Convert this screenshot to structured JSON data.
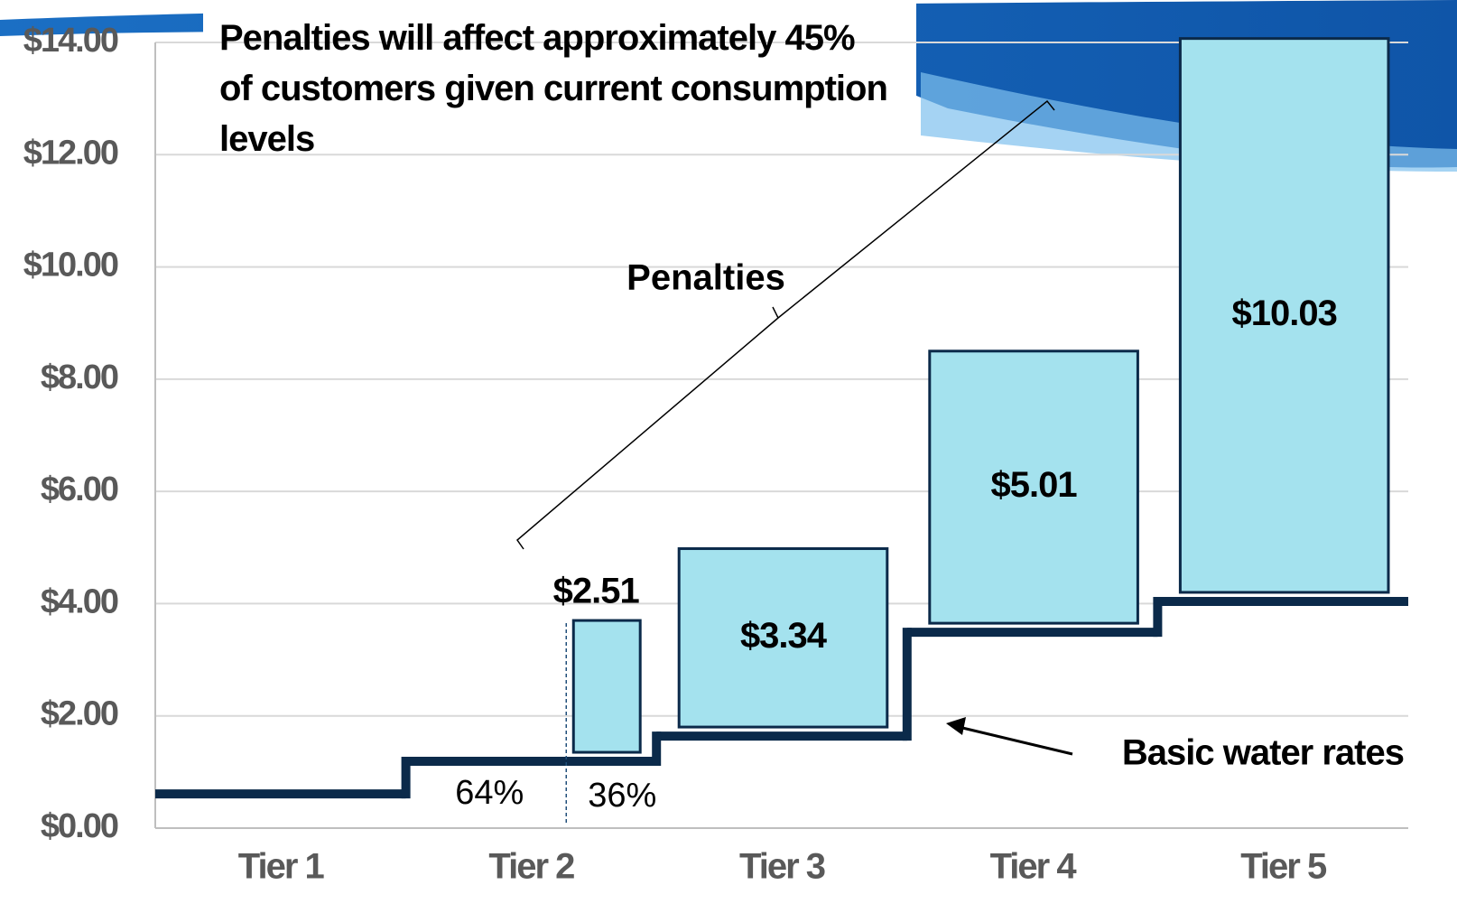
{
  "chart_data": {
    "type": "stepped-stack",
    "title": "Penalties will affect approximately 45% of customers given current consumption levels",
    "categories": [
      "Tier 1",
      "Tier 2",
      "Tier 3",
      "Tier 4",
      "Tier 5"
    ],
    "series": [
      {
        "name": "Basic water rates",
        "color": "#0b2a4a",
        "values": [
          0.61,
          1.19,
          1.64,
          3.49,
          4.04
        ]
      },
      {
        "name": "Penalties",
        "color": "#a4e2ee",
        "values": [
          null,
          2.51,
          3.34,
          5.01,
          10.03
        ],
        "value_labels": [
          null,
          "$2.51",
          "$3.34",
          "$5.01",
          "$10.03"
        ]
      }
    ],
    "tier2_split": [
      {
        "value": 64,
        "label": "64%"
      },
      {
        "value": 36,
        "label": "36%"
      }
    ],
    "ylim": [
      0,
      14
    ],
    "yticks": [
      {
        "value": 0,
        "label": "$0.00"
      },
      {
        "value": 2,
        "label": "$2.00"
      },
      {
        "value": 4,
        "label": "$4.00"
      },
      {
        "value": 6,
        "label": "$6.00"
      },
      {
        "value": 8,
        "label": "$8.00"
      },
      {
        "value": 10,
        "label": "$10.00"
      },
      {
        "value": 12,
        "label": "$12.00"
      },
      {
        "value": 14,
        "label": "$14.00"
      }
    ],
    "grid": true
  }
}
